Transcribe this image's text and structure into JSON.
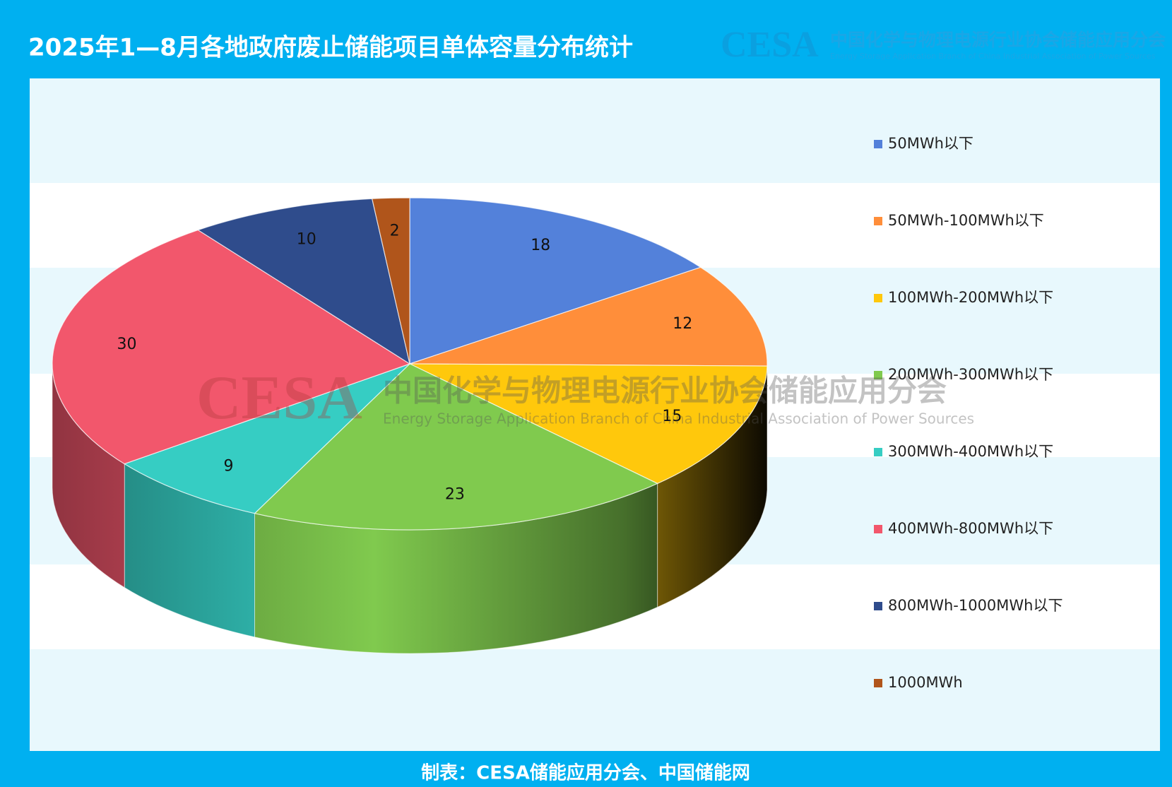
{
  "chart_data": {
    "type": "pie",
    "title": "2025年1—8月各地政府废止储能项目单体容量分布统计",
    "categories": [
      "50MWh以下",
      "50MWh-100MWh以下",
      "100MWh-200MWh以下",
      "200MWh-300MWh以下",
      "300MWh-400MWh以下",
      "400MWh-800MWh以下",
      "800MWh-1000MWh以下",
      "1000MWh"
    ],
    "values": [
      18,
      12,
      15,
      23,
      9,
      30,
      10,
      2
    ],
    "colors": [
      "#5381da",
      "#ff8e3a",
      "#ffc80c",
      "#80ca4e",
      "#36cdc3",
      "#f2576c",
      "#2f4c8c",
      "#b0551b"
    ],
    "legend": "right",
    "footer": "制表：CESA储能应用分会、中国储能网",
    "watermark": {
      "logo": "CESA",
      "name_cn": "中国化学与物理电源行业协会储能应用分会",
      "name_en": "Energy Storage Application Branch of China Industrial Association of Power Sources"
    }
  }
}
